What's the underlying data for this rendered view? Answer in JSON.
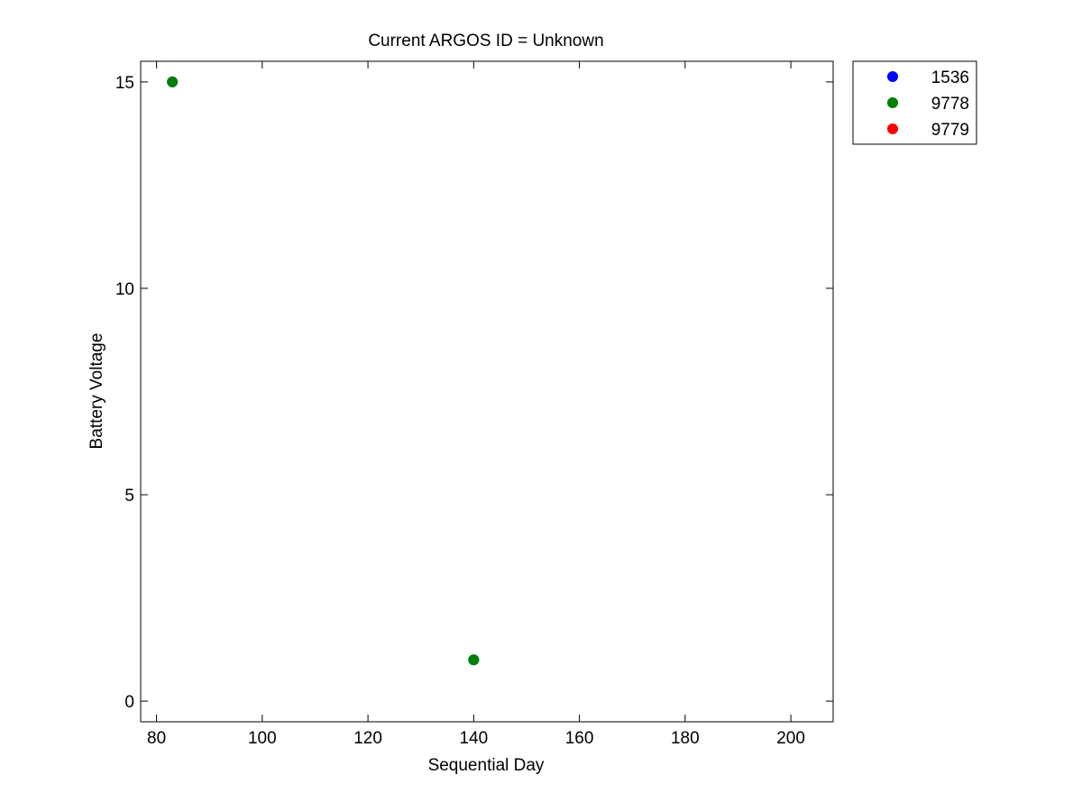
{
  "chart_data": {
    "type": "scatter",
    "title": "Current ARGOS ID = Unknown",
    "xlabel": "Sequential Day",
    "ylabel": "Battery Voltage",
    "xlim": [
      77,
      208
    ],
    "ylim": [
      -0.5,
      15.5
    ],
    "xticks": [
      80,
      100,
      120,
      140,
      160,
      180,
      200
    ],
    "yticks": [
      0,
      5,
      10,
      15
    ],
    "grid": false,
    "legend_position": "outside-top-right",
    "series": [
      {
        "name": "1536",
        "color": "#0000ff",
        "points": [
          [
            83,
            15
          ],
          [
            140,
            1
          ]
        ]
      },
      {
        "name": "9778",
        "color": "#008000",
        "points": [
          [
            83,
            15
          ],
          [
            140,
            1
          ]
        ]
      },
      {
        "name": "9779",
        "color": "#ff0000",
        "points": []
      }
    ]
  }
}
